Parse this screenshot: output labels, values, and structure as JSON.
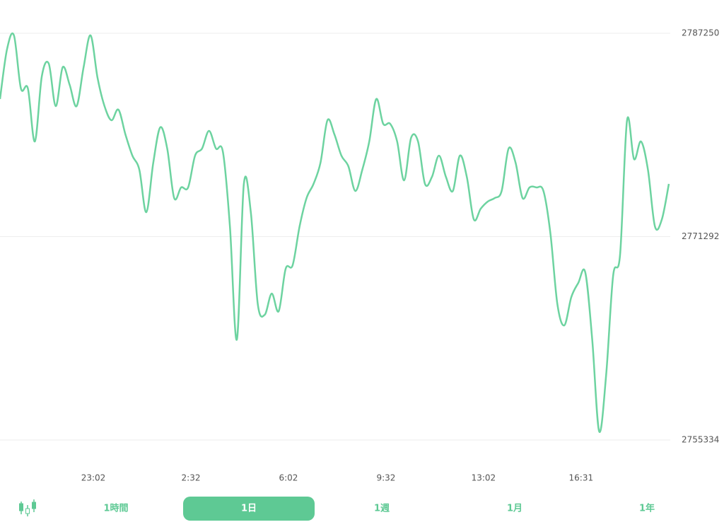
{
  "chart_data": {
    "type": "line",
    "color": "#6dd3a0",
    "grid": true,
    "values": [
      2782088,
      2785973,
      2787083,
      2782921,
      2782921,
      2778758,
      2783864,
      2784863,
      2781533,
      2784586,
      2783198,
      2781533,
      2784586,
      2787083,
      2783753,
      2781533,
      2780423,
      2781256,
      2779313,
      2777648,
      2776538,
      2773208,
      2777093,
      2779868,
      2778203,
      2774318,
      2775151,
      2775151,
      2777648,
      2778203,
      2779591,
      2778203,
      2777926,
      2772098,
      2763218,
      2775428,
      2773208,
      2765993,
      2765161,
      2766826,
      2765438,
      2768768,
      2769046,
      2772098,
      2774318,
      2775428,
      2777093,
      2780423,
      2779313,
      2777648,
      2776816,
      2774873,
      2776538,
      2778758,
      2782088,
      2780146,
      2780146,
      2778758,
      2775706,
      2779036,
      2778758,
      2775428,
      2775983,
      2777648,
      2775983,
      2774873,
      2777648,
      2775983,
      2772653,
      2773486,
      2774041,
      2774318,
      2774873,
      2778203,
      2777093,
      2774318,
      2775151,
      2775151,
      2774873,
      2771543,
      2765993,
      2764328,
      2766548,
      2767658,
      2768491,
      2763218,
      2756003,
      2760443,
      2768213,
      2769878,
      2780423,
      2777371,
      2778758,
      2776538,
      2772098,
      2772653,
      2775428
    ],
    "xlim": [
      0,
      96
    ],
    "xticks": [
      {
        "value": 13.4,
        "label": "23:02"
      },
      {
        "value": 27.4,
        "label": "2:32"
      },
      {
        "value": 41.4,
        "label": "6:02"
      },
      {
        "value": 55.4,
        "label": "9:32"
      },
      {
        "value": 69.4,
        "label": "13:02"
      },
      {
        "value": 83.4,
        "label": "16:31"
      }
    ],
    "ylim": [
      2755334,
      2787250
    ],
    "yticks": [
      2755334,
      2771292,
      2787250
    ]
  },
  "tabs": {
    "items": [
      "1時間",
      "1日",
      "1週",
      "1月",
      "1年"
    ],
    "selected_index": 1
  }
}
